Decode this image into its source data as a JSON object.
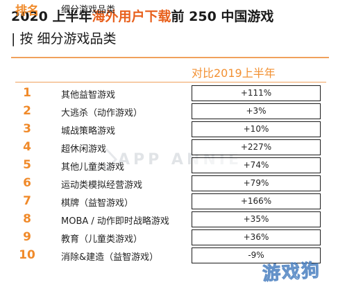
{
  "title": {
    "line1_prefix": "2020 上半年",
    "line1_highlight": "海外",
    "line1_mid": "用户下载",
    "line1_suffix": "前 250 中国游戏",
    "line2_bar": "|",
    "line2_text": " 按 细分游戏品类"
  },
  "headers": {
    "rank": "排名",
    "category": "细分游戏品类",
    "compare": "对比2019上半年"
  },
  "watermark": {
    "logo_text": "APP ANNIE",
    "corner_text": "游戏狗"
  },
  "colors": {
    "accent": "#f29032",
    "rank": "#f08a2a",
    "title_highlight": "#e8601c",
    "border": "#1a1a1a"
  },
  "chart_data": {
    "type": "table",
    "columns": [
      "排名",
      "细分游戏品类",
      "对比2019上半年"
    ],
    "rows": [
      {
        "rank": "1",
        "category": "其他益智游戏",
        "change": "+111%"
      },
      {
        "rank": "2",
        "category": "大逃杀（动作游戏）",
        "change": "+3%"
      },
      {
        "rank": "3",
        "category": "城战策略游戏",
        "change": "+10%"
      },
      {
        "rank": "4",
        "category": "超休闲游戏",
        "change": "+227%"
      },
      {
        "rank": "5",
        "category": "其他儿童类游戏",
        "change": "+74%"
      },
      {
        "rank": "6",
        "category": "运动类模拟经营游戏",
        "change": "+79%"
      },
      {
        "rank": "7",
        "category": "棋牌（益智游戏）",
        "change": "+166%"
      },
      {
        "rank": "8",
        "category": "MOBA / 动作即时战略游戏",
        "change": "+35%"
      },
      {
        "rank": "9",
        "category": "教育（儿童类游戏）",
        "change": "+36%"
      },
      {
        "rank": "10",
        "category": "消除&建造（益智游戏）",
        "change": "-9%"
      }
    ]
  }
}
